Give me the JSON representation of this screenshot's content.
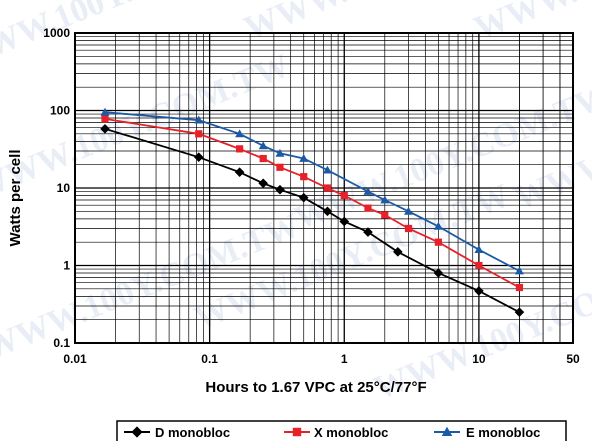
{
  "chart_data": {
    "type": "line",
    "title": "",
    "xlabel": "Hours to 1.67 VPC at 25°C/77°F",
    "ylabel": "Watts per cell",
    "x_scale": "log",
    "y_scale": "log",
    "xlim": [
      0.01,
      50
    ],
    "ylim": [
      0.1,
      1000
    ],
    "x_ticks": [
      "0.01",
      "0.1",
      "1",
      "10",
      "50"
    ],
    "x_tick_values": [
      0.01,
      0.1,
      1,
      10,
      50
    ],
    "y_ticks": [
      "1000",
      "100",
      "10",
      "1",
      "0.1"
    ],
    "y_tick_values": [
      1000,
      100,
      10,
      1,
      0.1
    ],
    "grid": true,
    "legend_position": "bottom",
    "watermark": "WWW.100Y.COM.TW",
    "series": [
      {
        "name": "D monobloc",
        "color": "#000000",
        "marker": "diamond",
        "x": [
          0.0167,
          0.083,
          0.167,
          0.25,
          0.333,
          0.5,
          0.75,
          1,
          1.5,
          2.5,
          5,
          10,
          20
        ],
        "y": [
          58,
          25,
          16,
          11.5,
          9.5,
          7.5,
          5,
          3.7,
          2.7,
          1.5,
          0.8,
          0.47,
          0.25
        ]
      },
      {
        "name": "X monobloc",
        "color": "#e8202a",
        "marker": "square",
        "x": [
          0.0167,
          0.083,
          0.167,
          0.25,
          0.333,
          0.5,
          0.75,
          1,
          1.5,
          2,
          3,
          5,
          10,
          20
        ],
        "y": [
          78,
          50,
          32,
          24,
          18.5,
          14,
          10,
          8,
          5.5,
          4.5,
          3,
          2,
          1,
          0.52
        ]
      },
      {
        "name": "E monobloc",
        "color": "#1c5aa6",
        "marker": "triangle",
        "x": [
          0.0167,
          0.083,
          0.167,
          0.25,
          0.333,
          0.5,
          0.75,
          1.5,
          2,
          3,
          5,
          10,
          20
        ],
        "y": [
          95,
          75,
          50,
          35,
          28,
          24,
          17,
          9,
          7,
          5,
          3.2,
          1.6,
          0.85
        ]
      }
    ]
  }
}
